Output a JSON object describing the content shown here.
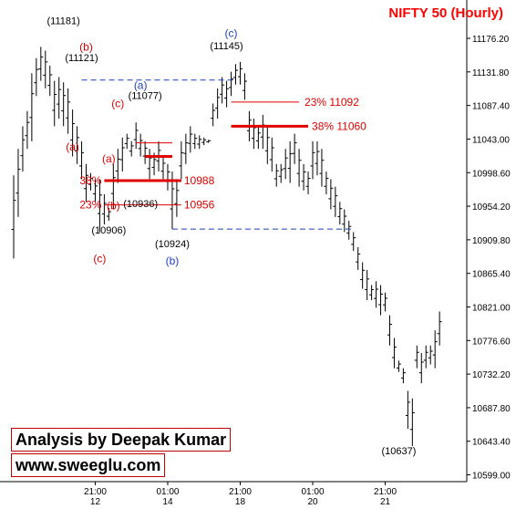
{
  "chart_data": {
    "type": "ohlc",
    "title": "NIFTY 50 (Hourly)",
    "colors": {
      "title": "#ff0000",
      "price": "#000000",
      "fib": "#e00000",
      "support": "#1f3fbf",
      "wave_blue": "#1f3fbf",
      "wave_red": "#e00000"
    },
    "y_axis": {
      "range": [
        10590,
        11210
      ],
      "ticks": [
        "11176.20",
        "11131.80",
        "11087.40",
        "11043.00",
        "10998.60",
        "10954.20",
        "10909.80",
        "10865.40",
        "10821.00",
        "10776.60",
        "10732.20",
        "10687.80",
        "10643.40",
        "10599.00"
      ],
      "tick_values": [
        11176.2,
        11131.8,
        11087.4,
        11043.0,
        10998.6,
        10954.2,
        10909.8,
        10865.4,
        10821.0,
        10776.6,
        10732.2,
        10687.8,
        10643.4,
        10599.0
      ]
    },
    "x_axis": {
      "range": [
        0,
        99
      ],
      "ticks": [
        {
          "time": "21:00",
          "date": "12",
          "bar": 18
        },
        {
          "time": "01:00",
          "date": "14",
          "bar": 34
        },
        {
          "time": "21:00",
          "date": "18",
          "bar": 50
        },
        {
          "time": "01:00",
          "date": "20",
          "bar": 66
        },
        {
          "time": "21:00",
          "date": "21",
          "bar": 82
        }
      ]
    },
    "bars": [
      [
        0,
        10995,
        10885
      ],
      [
        1,
        11030,
        10940
      ],
      [
        2,
        11060,
        11000
      ],
      [
        3,
        11080,
        11030
      ],
      [
        4,
        11130,
        11040
      ],
      [
        5,
        11150,
        11100
      ],
      [
        6,
        11165,
        11120
      ],
      [
        7,
        11160,
        11110
      ],
      [
        8,
        11140,
        11100
      ],
      [
        9,
        11120,
        11060
      ],
      [
        10,
        11125,
        11070
      ],
      [
        11,
        11118,
        11060
      ],
      [
        12,
        11110,
        11050
      ],
      [
        13,
        11082,
        11020
      ],
      [
        14,
        11060,
        11010
      ],
      [
        15,
        11040,
        10990
      ],
      [
        16,
        11010,
        10960
      ],
      [
        17,
        10998,
        10975
      ],
      [
        18,
        10990,
        10960
      ],
      [
        19,
        10990,
        10920
      ],
      [
        20,
        10970,
        10930
      ],
      [
        21,
        10952,
        10935
      ],
      [
        22,
        11010,
        10950
      ],
      [
        23,
        11030,
        10985
      ],
      [
        24,
        11045,
        11000
      ],
      [
        25,
        11050,
        11030
      ],
      [
        26,
        11040,
        11020
      ],
      [
        27,
        11065,
        11030
      ],
      [
        28,
        11050,
        11020
      ],
      [
        29,
        11040,
        11010
      ],
      [
        30,
        11030,
        10990
      ],
      [
        31,
        11025,
        10995
      ],
      [
        32,
        11040,
        11000
      ],
      [
        33,
        11020,
        10990
      ],
      [
        34,
        11010,
        10975
      ],
      [
        35,
        11000,
        10924
      ],
      [
        36,
        10990,
        10940
      ],
      [
        37,
        11040,
        10990
      ],
      [
        38,
        11050,
        11010
      ],
      [
        39,
        11060,
        11025
      ],
      [
        40,
        11050,
        11030
      ],
      [
        41,
        11048,
        11030
      ],
      [
        42,
        11045,
        11035
      ],
      [
        43,
        11042,
        11038
      ],
      [
        44,
        11090,
        11060
      ],
      [
        45,
        11110,
        11070
      ],
      [
        46,
        11125,
        11090
      ],
      [
        47,
        11120,
        11085
      ],
      [
        48,
        11132,
        11100
      ],
      [
        49,
        11142,
        11115
      ],
      [
        50,
        11145,
        11115
      ],
      [
        51,
        11130,
        11095
      ],
      [
        52,
        11080,
        11040
      ],
      [
        53,
        11070,
        11030
      ],
      [
        54,
        11060,
        11030
      ],
      [
        55,
        11075,
        11030
      ],
      [
        56,
        11060,
        11010
      ],
      [
        57,
        11045,
        11000
      ],
      [
        58,
        11010,
        10980
      ],
      [
        59,
        11010,
        10985
      ],
      [
        60,
        11030,
        10990
      ],
      [
        61,
        11040,
        10985
      ],
      [
        62,
        11050,
        11010
      ],
      [
        63,
        11030,
        10980
      ],
      [
        64,
        11010,
        10975
      ],
      [
        65,
        11000,
        10970
      ],
      [
        66,
        11040,
        10990
      ],
      [
        67,
        11040,
        10995
      ],
      [
        68,
        11030,
        10980
      ],
      [
        69,
        11000,
        10970
      ],
      [
        70,
        10990,
        10950
      ],
      [
        71,
        10980,
        10940
      ],
      [
        72,
        10960,
        10930
      ],
      [
        73,
        10950,
        10920
      ],
      [
        74,
        10935,
        10910
      ],
      [
        75,
        10920,
        10895
      ],
      [
        76,
        10900,
        10870
      ],
      [
        77,
        10880,
        10845
      ],
      [
        78,
        10870,
        10830
      ],
      [
        79,
        10850,
        10830
      ],
      [
        80,
        10855,
        10820
      ],
      [
        81,
        10850,
        10810
      ],
      [
        82,
        10840,
        10815
      ],
      [
        83,
        10810,
        10770
      ],
      [
        84,
        10780,
        10740
      ],
      [
        85,
        10750,
        10735
      ],
      [
        86,
        10740,
        10720
      ],
      [
        87,
        10710,
        10660
      ],
      [
        88,
        10700,
        10637
      ],
      [
        89,
        10770,
        10740
      ],
      [
        90,
        10760,
        10720
      ],
      [
        91,
        10770,
        10740
      ],
      [
        92,
        10770,
        10745
      ],
      [
        93,
        10790,
        10740
      ],
      [
        94,
        10815,
        10770
      ]
    ],
    "reference_lines": [
      {
        "label": "23%",
        "value": "11092",
        "x_from": 48,
        "x_to": 63,
        "style": "thin",
        "color": "#e00000"
      },
      {
        "label": "38%",
        "value": "11060",
        "x_from": 48,
        "x_to": 65,
        "style": "thick",
        "color": "#e00000"
      },
      {
        "label": "38%",
        "value": "10988",
        "x_from": 20,
        "x_to": 37,
        "style": "thick",
        "color": "#e00000"
      },
      {
        "label": "23%",
        "value": "10956",
        "x_from": 20,
        "x_to": 37,
        "style": "thin",
        "color": "#e00000"
      }
    ],
    "short_segments": [
      {
        "x_from": 29,
        "x_to": 35,
        "value": 11020,
        "style": "thick",
        "color": "#e00000"
      },
      {
        "x_from": 27,
        "x_to": 35,
        "value": 11038,
        "style": "thin",
        "color": "#e00000"
      }
    ],
    "dashed_levels": [
      {
        "value": 11121,
        "x_from": 15,
        "x_to": 49,
        "color": "#1f3fbf"
      },
      {
        "value": 10924,
        "x_from": 35,
        "x_to": 75,
        "color": "#1f3fbf"
      }
    ],
    "price_labels": [
      "(11181)",
      "(11121)",
      "(11077)",
      "(11145)",
      "(10936)",
      "(10906)",
      "(10924)",
      "(10637)"
    ],
    "wave_labels": [
      {
        "text": "(b)",
        "color": "red"
      },
      {
        "text": "(a)",
        "color": "red"
      },
      {
        "text": "(c)",
        "color": "red"
      },
      {
        "text": "(a)",
        "color": "red"
      },
      {
        "text": "(b)",
        "color": "red"
      },
      {
        "text": "(c)",
        "color": "red"
      },
      {
        "text": "(a)",
        "color": "blue"
      },
      {
        "text": "(b)",
        "color": "blue"
      },
      {
        "text": "(c)",
        "color": "blue"
      }
    ],
    "footer": {
      "analysis": "Analysis by Deepak Kumar",
      "website": "www.sweeglu.com"
    }
  }
}
